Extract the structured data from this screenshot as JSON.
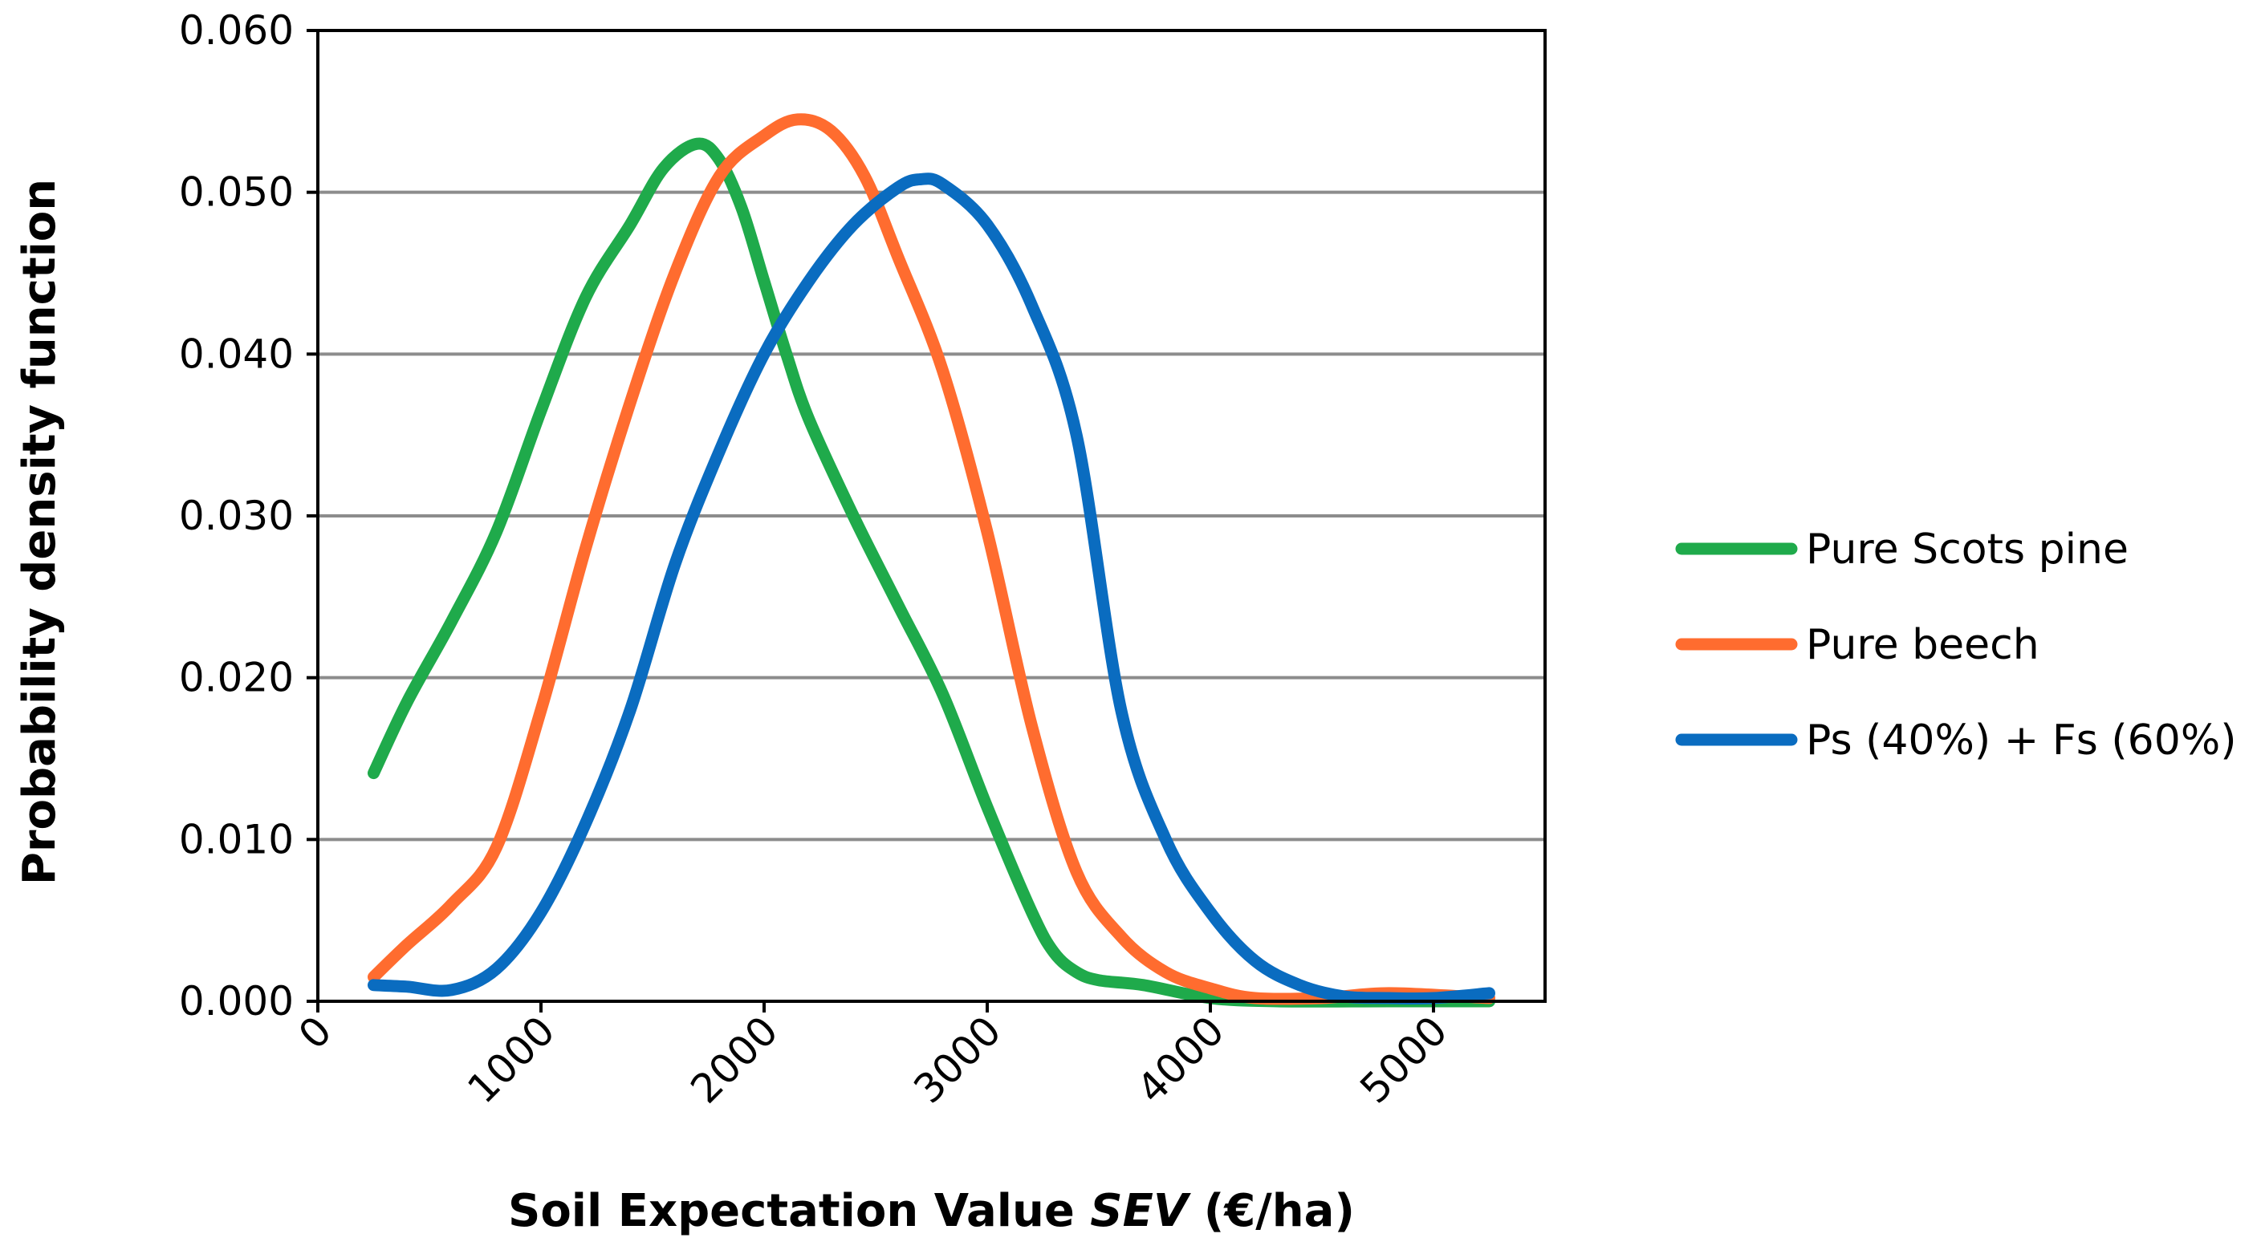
{
  "chart_data": {
    "type": "line",
    "title": "",
    "xlabel_parts": [
      {
        "text": "Soil Expectation Value ",
        "italic": false
      },
      {
        "text": "SEV",
        "italic": true
      },
      {
        "text": " (€/ha)",
        "italic": false
      }
    ],
    "ylabel": "Probability density function",
    "xlim": [
      0,
      5500
    ],
    "ylim": [
      0,
      0.06
    ],
    "x_ticks": [
      0,
      1000,
      2000,
      3000,
      4000,
      5000
    ],
    "x_tick_labels": [
      "0",
      "1000",
      "2000",
      "3000",
      "4000",
      "5000"
    ],
    "y_ticks": [
      0,
      0.01,
      0.02,
      0.03,
      0.04,
      0.05,
      0.06
    ],
    "y_tick_labels": [
      "0.000",
      "0.010",
      "0.020",
      "0.030",
      "0.040",
      "0.050",
      "0.060"
    ],
    "grid": "horizontal",
    "legend_position": "right",
    "series": [
      {
        "name": "Pure Scots pine",
        "color": "#1faa4b",
        "points": [
          [
            250,
            0.0141
          ],
          [
            400,
            0.0185
          ],
          [
            600,
            0.0235
          ],
          [
            800,
            0.029
          ],
          [
            1000,
            0.0365
          ],
          [
            1200,
            0.0435
          ],
          [
            1400,
            0.048
          ],
          [
            1550,
            0.0515
          ],
          [
            1700,
            0.053
          ],
          [
            1800,
            0.052
          ],
          [
            1900,
            0.049
          ],
          [
            2000,
            0.0445
          ],
          [
            2100,
            0.04
          ],
          [
            2200,
            0.036
          ],
          [
            2400,
            0.03
          ],
          [
            2600,
            0.0245
          ],
          [
            2800,
            0.019
          ],
          [
            3000,
            0.012
          ],
          [
            3200,
            0.0055
          ],
          [
            3300,
            0.003
          ],
          [
            3400,
            0.0018
          ],
          [
            3500,
            0.0013
          ],
          [
            3700,
            0.001
          ],
          [
            4000,
            0.0002
          ],
          [
            4300,
            0.0
          ],
          [
            4800,
            0.0
          ],
          [
            5250,
            0.0
          ]
        ]
      },
      {
        "name": "Pure beech",
        "color": "#ff6c2f",
        "points": [
          [
            250,
            0.0015
          ],
          [
            400,
            0.0035
          ],
          [
            600,
            0.006
          ],
          [
            800,
            0.0095
          ],
          [
            1000,
            0.018
          ],
          [
            1200,
            0.028
          ],
          [
            1400,
            0.037
          ],
          [
            1600,
            0.045
          ],
          [
            1800,
            0.051
          ],
          [
            2000,
            0.0535
          ],
          [
            2150,
            0.0545
          ],
          [
            2300,
            0.0538
          ],
          [
            2450,
            0.051
          ],
          [
            2600,
            0.046
          ],
          [
            2800,
            0.039
          ],
          [
            3000,
            0.029
          ],
          [
            3200,
            0.017
          ],
          [
            3400,
            0.008
          ],
          [
            3600,
            0.004
          ],
          [
            3800,
            0.0018
          ],
          [
            4000,
            0.0008
          ],
          [
            4200,
            0.0002
          ],
          [
            4500,
            0.0002
          ],
          [
            4800,
            0.0005
          ],
          [
            5250,
            0.0002
          ]
        ]
      },
      {
        "name": "Ps (40%) + Fs (60%)",
        "color": "#0a6cc0",
        "points": [
          [
            250,
            0.001
          ],
          [
            400,
            0.0009
          ],
          [
            600,
            0.0007
          ],
          [
            800,
            0.002
          ],
          [
            1000,
            0.0055
          ],
          [
            1200,
            0.011
          ],
          [
            1400,
            0.018
          ],
          [
            1600,
            0.027
          ],
          [
            1800,
            0.034
          ],
          [
            2000,
            0.04
          ],
          [
            2200,
            0.0445
          ],
          [
            2400,
            0.048
          ],
          [
            2600,
            0.0503
          ],
          [
            2700,
            0.0508
          ],
          [
            2800,
            0.0505
          ],
          [
            3000,
            0.048
          ],
          [
            3200,
            0.043
          ],
          [
            3400,
            0.035
          ],
          [
            3600,
            0.018
          ],
          [
            3800,
            0.01
          ],
          [
            4000,
            0.0055
          ],
          [
            4200,
            0.0025
          ],
          [
            4400,
            0.001
          ],
          [
            4600,
            0.0003
          ],
          [
            4800,
            0.0002
          ],
          [
            5000,
            0.0002
          ],
          [
            5250,
            0.0005
          ]
        ]
      }
    ]
  }
}
